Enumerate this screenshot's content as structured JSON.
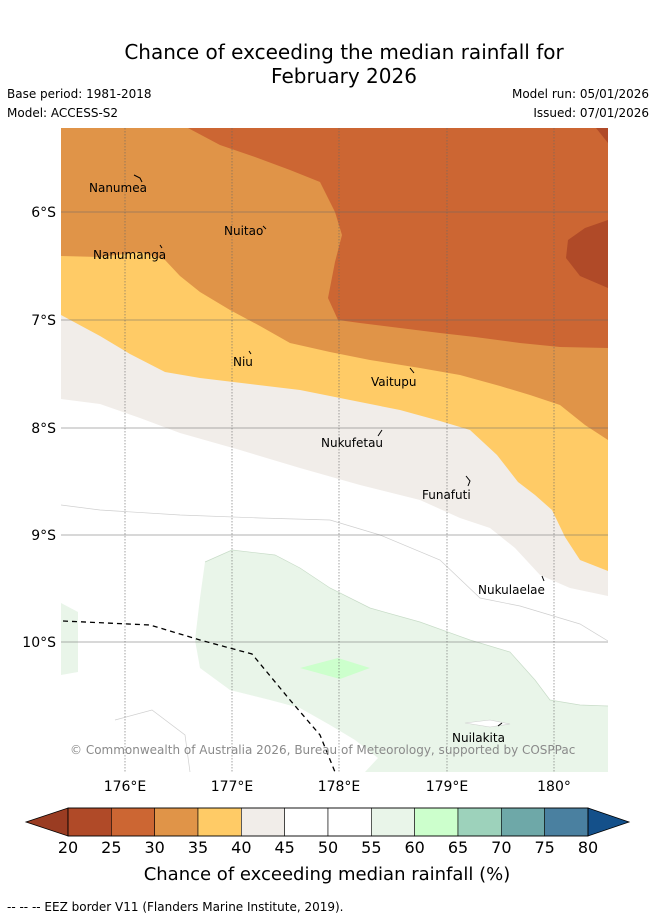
{
  "title": {
    "line1": "Chance of exceeding the median rainfall for",
    "line2": "February 2026"
  },
  "meta": {
    "base_period": "Base period: 1981-2018",
    "model": "Model: ACCESS-S2",
    "model_run": "Model run: 05/01/2026",
    "issued": "Issued: 07/01/2026"
  },
  "axes": {
    "lat_labels": [
      "6°S",
      "7°S",
      "8°S",
      "9°S",
      "10°S"
    ],
    "lon_labels": [
      "176°E",
      "177°E",
      "178°E",
      "179°E",
      "180°"
    ]
  },
  "places": {
    "nanumea": "Nanumea",
    "nuitao": "Nuitao",
    "nanumanga": "Nanumanga",
    "niu": "Niu",
    "vaitupu": "Vaitupu",
    "nukufetau": "Nukufetau",
    "funafuti": "Funafuti",
    "nukulaelae": "Nukulaelae",
    "nuilakita": "Nuilakita"
  },
  "copyright": "© Commonwealth of Australia 2026, Bureau of Meteorology, supported by COSPPac",
  "colorbar": {
    "title": "Chance of exceeding median rainfall (%)",
    "ticks": [
      "20",
      "25",
      "30",
      "35",
      "40",
      "45",
      "50",
      "55",
      "60",
      "65",
      "70",
      "75",
      "80"
    ],
    "colors": [
      "#b04a28",
      "#cc6633",
      "#e09448",
      "#ffcb66",
      "#f1ede9",
      "#ffffff",
      "#ffffff",
      "#e9f5e9",
      "#ccffcc",
      "#9dd2bb",
      "#6ea8a8",
      "#4a80a0"
    ],
    "under_color": "#9a3c22",
    "over_color": "#14508a"
  },
  "footnote": "--  --  -- EEZ border V11 (Flanders Marine Institute, 2019)."
}
